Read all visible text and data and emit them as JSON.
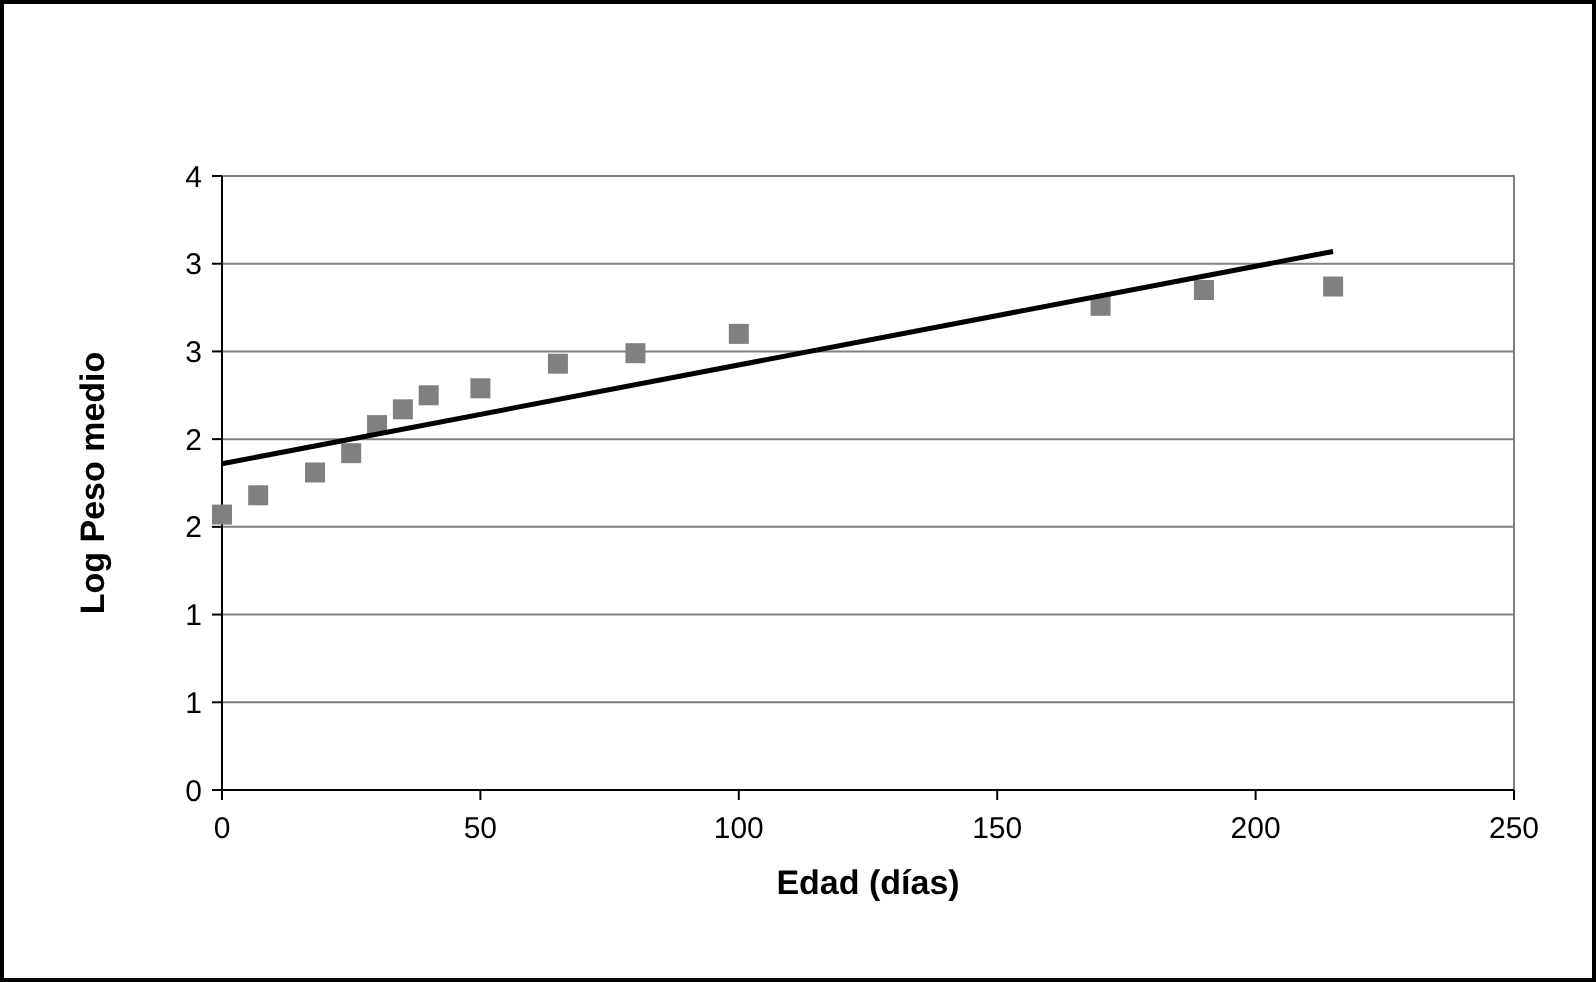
{
  "chart_data": {
    "type": "scatter",
    "xlabel": "Edad (días)",
    "ylabel": "Log Peso medio",
    "x": [
      0,
      7,
      18,
      25,
      30,
      35,
      40,
      50,
      65,
      80,
      100,
      170,
      190,
      215
    ],
    "series": [
      {
        "color": "#808080",
        "marker": "square",
        "values": [
          1.57,
          1.68,
          1.81,
          1.92,
          2.08,
          2.17,
          2.25,
          2.29,
          2.43,
          2.49,
          2.6,
          2.76,
          2.85,
          2.87
        ]
      },
      {
        "type": "line",
        "color": "#000000",
        "x": [
          0,
          215
        ],
        "values": [
          1.86,
          3.07
        ],
        "line_style": "solid"
      }
    ],
    "xlim": [
      0,
      250
    ],
    "xticks": [
      0,
      50,
      100,
      150,
      200,
      250
    ],
    "ylim": [
      0,
      3.5
    ],
    "yticks": [
      0,
      {
        "value": 0.5,
        "label": "1"
      },
      1,
      {
        "value": 1.5,
        "label": "2"
      },
      2,
      {
        "value": 2.5,
        "label": "3"
      },
      3,
      {
        "value": 3.5,
        "label": "4"
      }
    ],
    "grid": "y"
  }
}
